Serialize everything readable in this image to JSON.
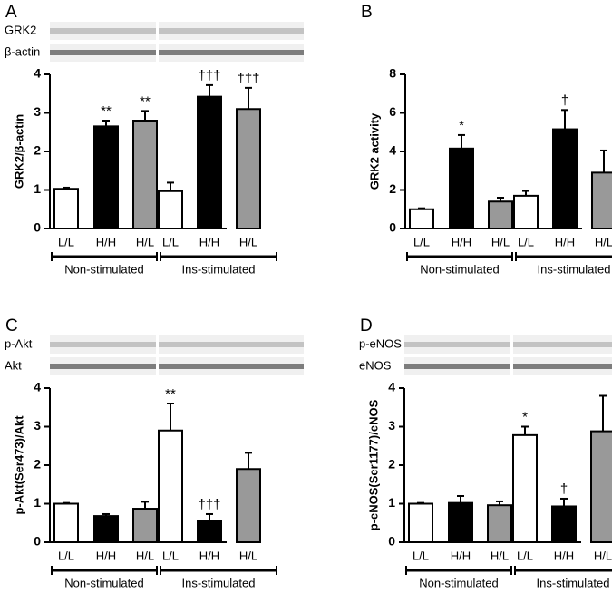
{
  "chart_data": [
    {
      "type": "bar",
      "panel": "A",
      "ylabel": "GRK2/β-actin",
      "blots": [
        "GRK2",
        "β-actin"
      ],
      "categories": [
        "L/L",
        "H/H",
        "H/L",
        "L/L",
        "H/H",
        "H/L"
      ],
      "values": [
        1.03,
        2.65,
        2.8,
        0.97,
        3.42,
        3.1
      ],
      "errors": [
        0.03,
        0.15,
        0.25,
        0.22,
        0.3,
        0.55
      ],
      "annotations": [
        null,
        "**",
        "**",
        null,
        "†††",
        "†††"
      ],
      "colors": [
        "#ffffff",
        "#000000",
        "#999999",
        "#ffffff",
        "#000000",
        "#999999"
      ],
      "groups": [
        "Non-stimulated",
        "Ins-stimulated"
      ],
      "ylim": [
        0,
        4
      ],
      "yticks": [
        0,
        1,
        2,
        3,
        4
      ]
    },
    {
      "type": "bar",
      "panel": "B",
      "ylabel": "GRK2 activity",
      "categories": [
        "L/L",
        "H/H",
        "H/L",
        "L/L",
        "H/H",
        "H/L"
      ],
      "values": [
        1.0,
        4.15,
        1.4,
        1.7,
        5.15,
        2.9
      ],
      "errors": [
        0.05,
        0.7,
        0.2,
        0.25,
        1.0,
        1.15
      ],
      "annotations": [
        null,
        "*",
        null,
        null,
        "†",
        null
      ],
      "colors": [
        "#ffffff",
        "#000000",
        "#999999",
        "#ffffff",
        "#000000",
        "#999999"
      ],
      "groups": [
        "Non-stimulated",
        "Ins-stimulated"
      ],
      "ylim": [
        0,
        8
      ],
      "yticks": [
        0,
        2,
        4,
        6,
        8
      ]
    },
    {
      "type": "bar",
      "panel": "C",
      "ylabel": "p-Akt(Ser473)/Akt",
      "blots": [
        "p-Akt",
        "Akt"
      ],
      "categories": [
        "L/L",
        "H/H",
        "H/L",
        "L/L",
        "H/H",
        "H/L"
      ],
      "values": [
        1.0,
        0.68,
        0.87,
        2.9,
        0.55,
        1.9
      ],
      "errors": [
        0.02,
        0.05,
        0.18,
        0.7,
        0.18,
        0.42
      ],
      "annotations": [
        null,
        null,
        null,
        "**",
        "†††",
        null
      ],
      "colors": [
        "#ffffff",
        "#000000",
        "#999999",
        "#ffffff",
        "#000000",
        "#999999"
      ],
      "groups": [
        "Non-stimulated",
        "Ins-stimulated"
      ],
      "ylim": [
        0,
        4
      ],
      "yticks": [
        0,
        1,
        2,
        3,
        4
      ]
    },
    {
      "type": "bar",
      "panel": "D",
      "ylabel": "p-eNOS(Ser1177)/eNOS",
      "blots": [
        "p-eNOS",
        "eNOS"
      ],
      "categories": [
        "L/L",
        "H/H",
        "H/L",
        "L/L",
        "H/H",
        "H/L"
      ],
      "values": [
        1.0,
        1.02,
        0.96,
        2.78,
        0.93,
        2.88
      ],
      "errors": [
        0.02,
        0.18,
        0.1,
        0.22,
        0.2,
        0.92
      ],
      "annotations": [
        null,
        null,
        null,
        "*",
        "†",
        null
      ],
      "colors": [
        "#ffffff",
        "#000000",
        "#999999",
        "#ffffff",
        "#000000",
        "#999999"
      ],
      "groups": [
        "Non-stimulated",
        "Ins-stimulated"
      ],
      "ylim": [
        0,
        4
      ],
      "yticks": [
        0,
        1,
        2,
        3,
        4
      ]
    }
  ]
}
